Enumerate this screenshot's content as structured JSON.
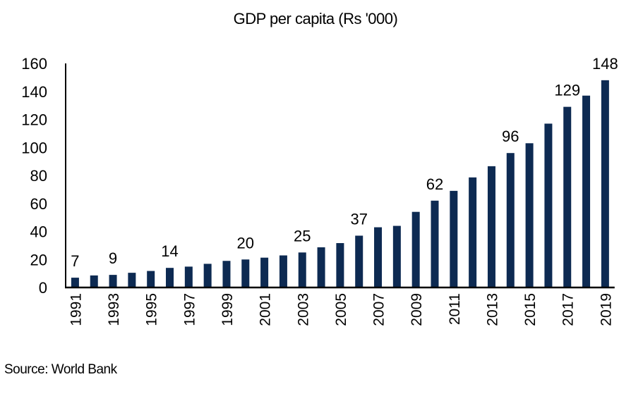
{
  "chart_data": {
    "type": "bar",
    "title": "GDP  per capita (Rs '000)",
    "xlabel": "",
    "ylabel": "",
    "ylim": [
      0,
      160
    ],
    "yticks": [
      0,
      20,
      40,
      60,
      80,
      100,
      120,
      140,
      160
    ],
    "grid": false,
    "categories": [
      "1991",
      "1992",
      "1993",
      "1994",
      "1995",
      "1996",
      "1997",
      "1998",
      "1999",
      "2000",
      "2001",
      "2002",
      "2003",
      "2004",
      "2005",
      "2006",
      "2007",
      "2008",
      "2009",
      "2010",
      "2011",
      "2012",
      "2013",
      "2014",
      "2015",
      "2016",
      "2017",
      "2018",
      "2019"
    ],
    "xtick_labels": [
      "1991",
      "1993",
      "1995",
      "1997",
      "1999",
      "2001",
      "2003",
      "2005",
      "2007",
      "2009",
      "2011",
      "2013",
      "2015",
      "2017",
      "2019"
    ],
    "values": [
      7,
      8.6,
      9,
      10.5,
      11.8,
      14,
      14.9,
      16.9,
      19,
      20,
      21.3,
      22.9,
      25,
      28.7,
      31.7,
      37,
      43,
      44,
      54,
      62,
      69,
      78.6,
      86.6,
      96,
      103,
      117,
      129,
      137,
      148
    ],
    "data_labels": [
      "7",
      null,
      "9",
      null,
      null,
      "14",
      null,
      null,
      null,
      "20",
      null,
      null,
      "25",
      null,
      null,
      "37",
      null,
      null,
      null,
      "62",
      null,
      null,
      null,
      "96",
      null,
      null,
      "129",
      null,
      "148"
    ],
    "bar_color": "#0d2a52"
  },
  "source": "Source: World Bank"
}
